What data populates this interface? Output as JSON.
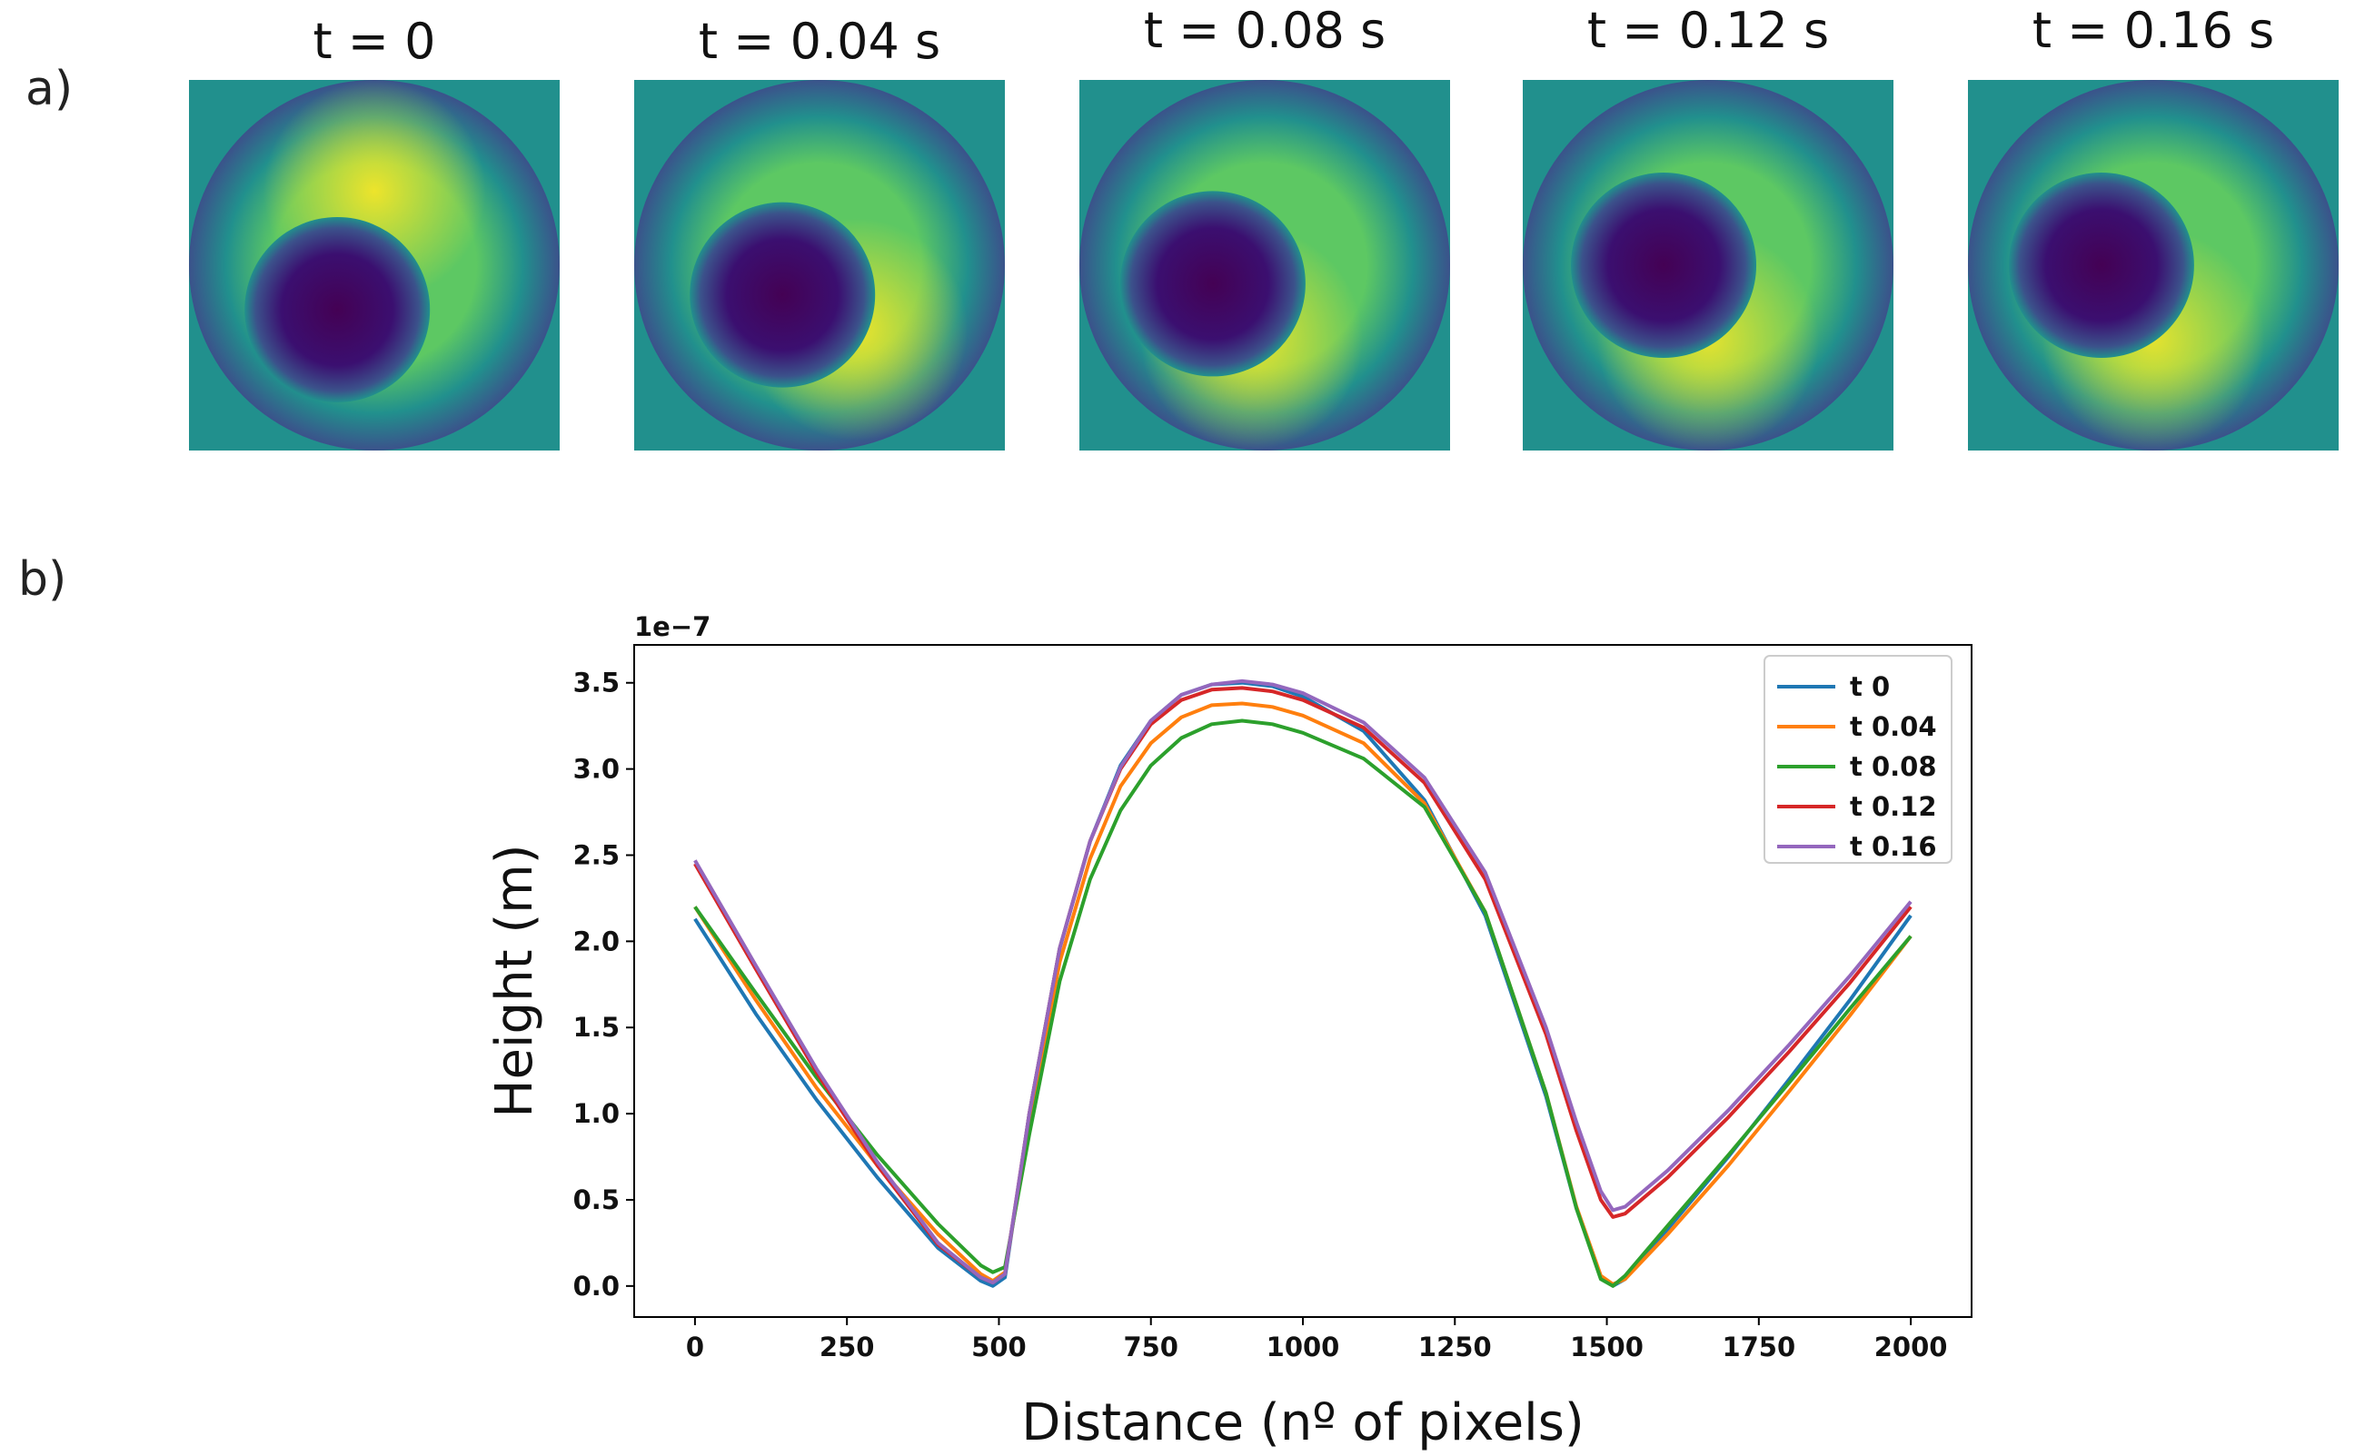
{
  "panel_a_label": "a)",
  "panel_b_label": "b)",
  "frames": [
    {
      "title": "t = 0",
      "inner_offset": [
        0.4,
        0.62
      ],
      "bright_angle_deg": -90,
      "bright_strength": 0.9
    },
    {
      "title": "t = 0.04 s",
      "inner_offset": [
        0.4,
        0.58
      ],
      "bright_angle_deg": 60,
      "bright_strength": 0.9
    },
    {
      "title": "t = 0.08 s",
      "inner_offset": [
        0.36,
        0.55
      ],
      "bright_angle_deg": 100,
      "bright_strength": 0.9
    },
    {
      "title": "t = 0.12 s",
      "inner_offset": [
        0.38,
        0.5
      ],
      "bright_angle_deg": 90,
      "bright_strength": 0.85
    },
    {
      "title": "t = 0.16 s",
      "inner_offset": [
        0.36,
        0.5
      ],
      "bright_angle_deg": 90,
      "bright_strength": 0.85
    }
  ],
  "colors": {
    "outside": "#21908d",
    "viridis_dark": "#440154",
    "viridis_blue": "#3b528b",
    "viridis_teal": "#21908d",
    "viridis_green": "#5dc863",
    "viridis_yellow": "#fde725"
  },
  "chart_data": {
    "type": "line",
    "title": "",
    "xlabel": "Distance  (nº of pixels)",
    "ylabel": "Height (m)",
    "offset_label": "1e−7",
    "xlim": [
      -100,
      2100
    ],
    "ylim": [
      -0.18,
      3.72
    ],
    "xticks": [
      0,
      250,
      500,
      750,
      1000,
      1250,
      1500,
      1750,
      2000
    ],
    "yticks": [
      0.0,
      0.5,
      1.0,
      1.5,
      2.0,
      2.5,
      3.0,
      3.5
    ],
    "ytick_labels": [
      "0.0",
      "0.5",
      "1.0",
      "1.5",
      "2.0",
      "2.5",
      "3.0",
      "3.5"
    ],
    "legend_position": "top-right",
    "grid": false,
    "series": [
      {
        "name": "t 0",
        "color": "#1f77b4",
        "x": [
          0,
          100,
          200,
          300,
          400,
          470,
          490,
          510,
          550,
          600,
          650,
          700,
          750,
          800,
          850,
          900,
          950,
          1000,
          1100,
          1200,
          1300,
          1400,
          1450,
          1490,
          1510,
          1530,
          1600,
          1700,
          1800,
          1900,
          2000
        ],
        "y": [
          2.13,
          1.58,
          1.08,
          0.63,
          0.22,
          0.03,
          0.0,
          0.05,
          1.0,
          1.96,
          2.58,
          3.02,
          3.28,
          3.43,
          3.49,
          3.5,
          3.48,
          3.42,
          3.22,
          2.82,
          2.15,
          1.1,
          0.45,
          0.05,
          0.0,
          0.04,
          0.33,
          0.75,
          1.2,
          1.66,
          2.15
        ]
      },
      {
        "name": "t 0.04",
        "color": "#ff7f0e",
        "x": [
          0,
          100,
          200,
          300,
          400,
          470,
          490,
          510,
          550,
          600,
          650,
          700,
          750,
          800,
          850,
          900,
          950,
          1000,
          1100,
          1200,
          1300,
          1400,
          1450,
          1490,
          1510,
          1530,
          1600,
          1700,
          1800,
          1900,
          2000
        ],
        "y": [
          2.2,
          1.66,
          1.15,
          0.7,
          0.3,
          0.07,
          0.03,
          0.08,
          0.95,
          1.88,
          2.48,
          2.9,
          3.15,
          3.3,
          3.37,
          3.38,
          3.36,
          3.31,
          3.15,
          2.8,
          2.17,
          1.12,
          0.46,
          0.06,
          0.01,
          0.04,
          0.3,
          0.7,
          1.13,
          1.57,
          2.03
        ]
      },
      {
        "name": "t 0.08",
        "color": "#2ca02c",
        "x": [
          0,
          100,
          200,
          300,
          400,
          470,
          490,
          510,
          550,
          600,
          650,
          700,
          750,
          800,
          850,
          900,
          950,
          1000,
          1100,
          1200,
          1300,
          1400,
          1450,
          1490,
          1510,
          1530,
          1600,
          1700,
          1800,
          1900,
          2000
        ],
        "y": [
          2.2,
          1.7,
          1.21,
          0.76,
          0.36,
          0.12,
          0.08,
          0.11,
          0.88,
          1.77,
          2.36,
          2.76,
          3.02,
          3.18,
          3.26,
          3.28,
          3.26,
          3.21,
          3.06,
          2.78,
          2.17,
          1.12,
          0.45,
          0.04,
          0.0,
          0.06,
          0.35,
          0.76,
          1.18,
          1.61,
          2.03
        ]
      },
      {
        "name": "t 0.12",
        "color": "#d62728",
        "x": [
          0,
          100,
          200,
          300,
          400,
          470,
          490,
          510,
          550,
          600,
          650,
          700,
          750,
          800,
          850,
          900,
          950,
          1000,
          1100,
          1200,
          1300,
          1400,
          1450,
          1490,
          1510,
          1530,
          1600,
          1700,
          1800,
          1900,
          2000
        ],
        "y": [
          2.45,
          1.84,
          1.24,
          0.7,
          0.24,
          0.05,
          0.02,
          0.07,
          1.0,
          1.96,
          2.58,
          3.0,
          3.26,
          3.4,
          3.46,
          3.47,
          3.45,
          3.4,
          3.24,
          2.92,
          2.36,
          1.46,
          0.9,
          0.5,
          0.4,
          0.42,
          0.63,
          0.98,
          1.36,
          1.76,
          2.2
        ]
      },
      {
        "name": "t 0.16",
        "color": "#9467bd",
        "x": [
          0,
          100,
          200,
          300,
          400,
          470,
          490,
          510,
          550,
          600,
          650,
          700,
          750,
          800,
          850,
          900,
          950,
          1000,
          1100,
          1200,
          1300,
          1400,
          1450,
          1490,
          1510,
          1530,
          1600,
          1700,
          1800,
          1900,
          2000
        ],
        "y": [
          2.47,
          1.86,
          1.26,
          0.72,
          0.25,
          0.05,
          0.02,
          0.07,
          1.0,
          1.96,
          2.58,
          3.01,
          3.28,
          3.43,
          3.49,
          3.51,
          3.49,
          3.44,
          3.27,
          2.95,
          2.4,
          1.5,
          0.95,
          0.55,
          0.44,
          0.46,
          0.67,
          1.02,
          1.4,
          1.8,
          2.23
        ]
      }
    ]
  }
}
